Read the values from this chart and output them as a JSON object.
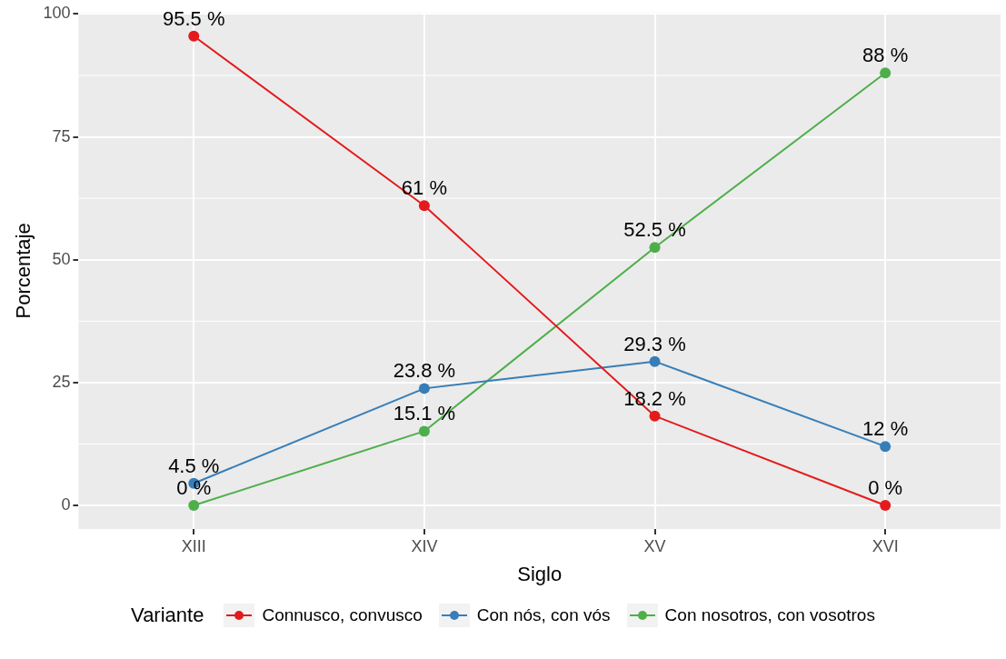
{
  "chart_data": {
    "type": "line",
    "xlabel": "Siglo",
    "ylabel": "Porcentaje",
    "legend_title": "Variante",
    "categories": [
      "XIII",
      "XIV",
      "XV",
      "XVI"
    ],
    "series": [
      {
        "name": "Connusco, convusco",
        "color": "#e41a1c",
        "values": [
          95.5,
          61,
          18.2,
          0
        ],
        "value_labels": [
          "95.5 %",
          "61 %",
          "18.2 %",
          "0 %"
        ]
      },
      {
        "name": "Con nós, con vós",
        "color": "#377eb8",
        "values": [
          4.5,
          23.8,
          29.3,
          12
        ],
        "value_labels": [
          "4.5 %",
          "23.8 %",
          "29.3 %",
          "12 %"
        ]
      },
      {
        "name": "Con nosotros, con vosotros",
        "color": "#4daf4a",
        "values": [
          0,
          15.1,
          52.5,
          88
        ],
        "value_labels": [
          "0 %",
          "15.1 %",
          "52.5 %",
          "88 %"
        ]
      }
    ],
    "ylim": [
      -4.8,
      100.3
    ],
    "yticks": [
      0,
      25,
      50,
      75,
      100
    ],
    "grid": true,
    "legend": "bottom",
    "marker": "circle",
    "line_style": "solid"
  }
}
